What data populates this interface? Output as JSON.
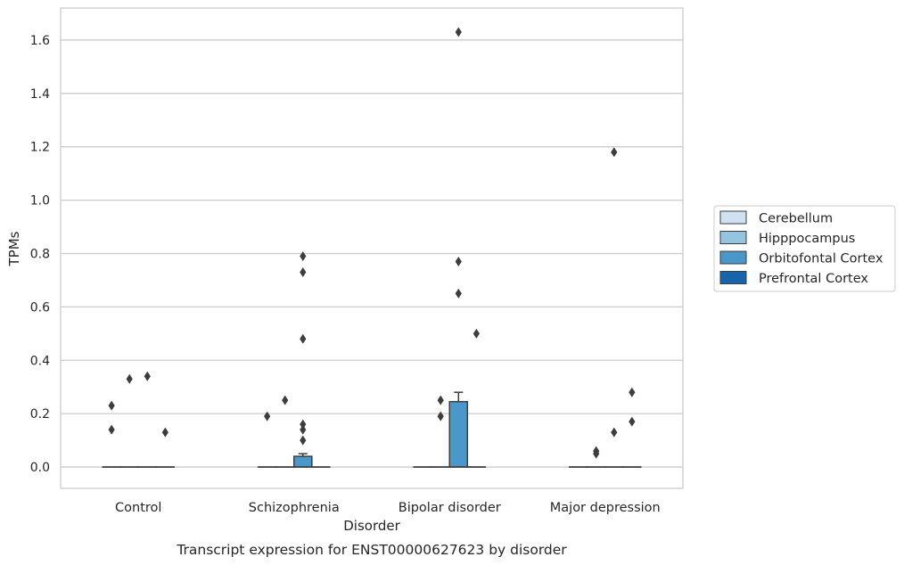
{
  "chart_data": {
    "type": "box",
    "title": "Transcript expression for ENST00000627623 by disorder",
    "xlabel": "Disorder",
    "ylabel": "TPMs",
    "ylim": [
      -0.08,
      1.72
    ],
    "yticks": [
      0.0,
      0.2,
      0.4,
      0.6,
      0.8,
      1.0,
      1.2,
      1.4,
      1.6
    ],
    "ytick_labels": [
      "0.0",
      "0.2",
      "0.4",
      "0.6",
      "0.8",
      "1.0",
      "1.2",
      "1.4",
      "1.6"
    ],
    "categories": [
      "Control",
      "Schizophrenia",
      "Bipolar disorder",
      "Major depression"
    ],
    "grid": true,
    "legend_position": "right",
    "series": [
      {
        "name": "Cerebellum",
        "color": "#d0e1f2",
        "boxes": [
          {
            "q1": 0,
            "median": 0,
            "q3": 0,
            "whisker_low": 0,
            "whisker_high": 0,
            "outliers": [
              0.23,
              0.14
            ]
          },
          {
            "q1": 0,
            "median": 0,
            "q3": 0,
            "whisker_low": 0,
            "whisker_high": 0,
            "outliers": [
              0.19
            ]
          },
          {
            "q1": 0,
            "median": 0,
            "q3": 0,
            "whisker_low": 0,
            "whisker_high": 0,
            "outliers": []
          },
          {
            "q1": 0,
            "median": 0,
            "q3": 0,
            "whisker_low": 0,
            "whisker_high": 0,
            "outliers": []
          }
        ]
      },
      {
        "name": "Hipppocampus",
        "color": "#94c4df",
        "boxes": [
          {
            "q1": 0,
            "median": 0,
            "q3": 0,
            "whisker_low": 0,
            "whisker_high": 0,
            "outliers": [
              0.33
            ]
          },
          {
            "q1": 0,
            "median": 0,
            "q3": 0,
            "whisker_low": 0,
            "whisker_high": 0,
            "outliers": [
              0.25
            ]
          },
          {
            "q1": 0,
            "median": 0,
            "q3": 0,
            "whisker_low": 0,
            "whisker_high": 0,
            "outliers": [
              0.25,
              0.19
            ]
          },
          {
            "q1": 0,
            "median": 0,
            "q3": 0,
            "whisker_low": 0,
            "whisker_high": 0,
            "outliers": [
              0.06,
              0.05
            ]
          }
        ]
      },
      {
        "name": "Orbitofontal Cortex",
        "color": "#4a98c9",
        "boxes": [
          {
            "q1": 0,
            "median": 0,
            "q3": 0,
            "whisker_low": 0,
            "whisker_high": 0,
            "outliers": [
              0.34
            ]
          },
          {
            "q1": 0,
            "median": 0,
            "q3": 0.04,
            "whisker_low": 0,
            "whisker_high": 0.05,
            "outliers": [
              0.79,
              0.73,
              0.48,
              0.16,
              0.14,
              0.1
            ]
          },
          {
            "q1": 0,
            "median": 0,
            "q3": 0.245,
            "whisker_low": 0,
            "whisker_high": 0.28,
            "outliers": [
              1.63,
              0.77,
              0.65
            ]
          },
          {
            "q1": 0,
            "median": 0,
            "q3": 0,
            "whisker_low": 0,
            "whisker_high": 0,
            "outliers": [
              1.18,
              0.13
            ]
          }
        ]
      },
      {
        "name": "Prefrontal Cortex",
        "color": "#1764ab",
        "boxes": [
          {
            "q1": 0,
            "median": 0,
            "q3": 0,
            "whisker_low": 0,
            "whisker_high": 0,
            "outliers": [
              0.13
            ]
          },
          {
            "q1": 0,
            "median": 0,
            "q3": 0,
            "whisker_low": 0,
            "whisker_high": 0,
            "outliers": []
          },
          {
            "q1": 0,
            "median": 0,
            "q3": 0,
            "whisker_low": 0,
            "whisker_high": 0,
            "outliers": [
              0.5
            ]
          },
          {
            "q1": 0,
            "median": 0,
            "q3": 0,
            "whisker_low": 0,
            "whisker_high": 0,
            "outliers": [
              0.28,
              0.17
            ]
          }
        ]
      }
    ]
  }
}
